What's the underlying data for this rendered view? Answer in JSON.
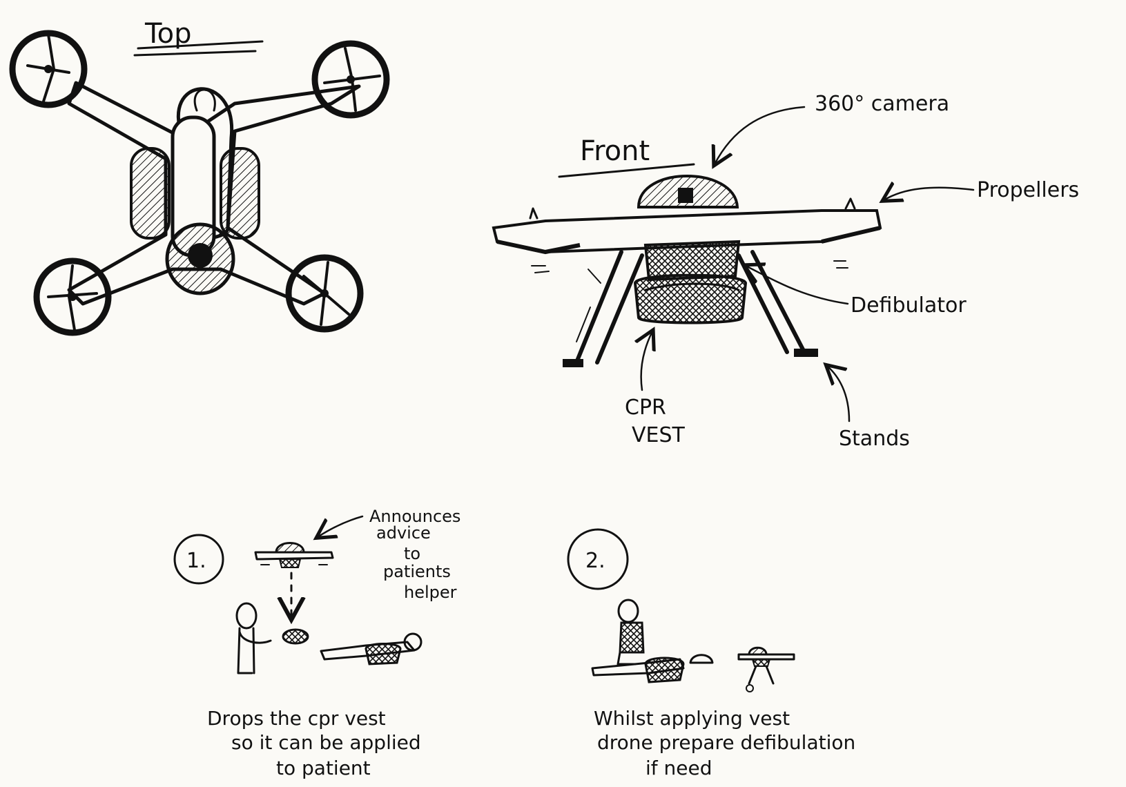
{
  "top_view": {
    "title": "Top"
  },
  "front_view": {
    "title": "Front",
    "labels": {
      "camera": "360° camera",
      "propellers": "Propellers",
      "defibrillator": "Defibulator",
      "cpr_vest_line1": "CPR",
      "cpr_vest_line2": "VEST",
      "stands": "Stands"
    }
  },
  "step1": {
    "number": "1.",
    "announce_lines": [
      "Announces",
      "advice",
      "to",
      "patients",
      "helper"
    ],
    "caption_lines": [
      "Drops the cpr vest",
      "so it can be applied",
      "to patient"
    ]
  },
  "step2": {
    "number": "2.",
    "caption_lines": [
      "Whilst applying vest",
      "drone prepare defibulation",
      "if need"
    ]
  }
}
